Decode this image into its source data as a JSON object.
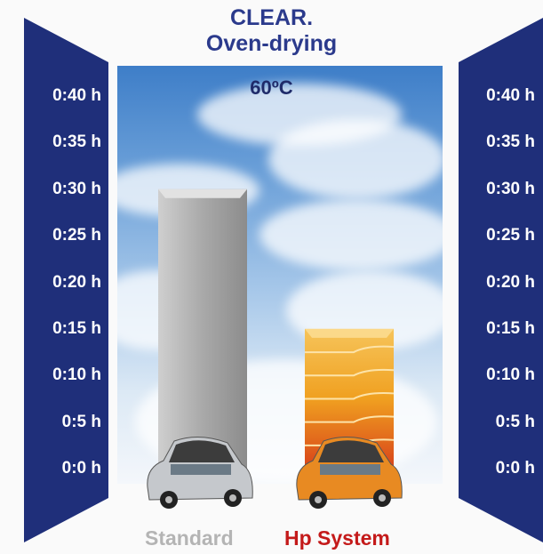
{
  "title": {
    "line1": "CLEAR.",
    "line2": "Oven-drying"
  },
  "condition": "60ºC",
  "axis": {
    "ticks": [
      "0:40 h",
      "0:35 h",
      "0:30 h",
      "0:25 h",
      "0:20 h",
      "0:15 h",
      "0:10 h",
      "0:5 h",
      "0:0 h"
    ]
  },
  "colors": {
    "panel": "#1f2f7a",
    "standard_bar": "#a9a9a9",
    "hp_bar": "#f0a020",
    "standard_label": "#b4b4b4",
    "hp_label": "#c41a1a",
    "title": "#2b3a8c"
  },
  "icons": [
    "car-icon"
  ],
  "chart_data": {
    "type": "bar",
    "title": "CLEAR. Oven-drying",
    "subtitle": "60ºC",
    "categories": [
      "Standard",
      "Hp System"
    ],
    "values": [
      30,
      15
    ],
    "units": "minutes",
    "ylim": [
      0,
      40
    ],
    "tick_step": 5,
    "grid": false,
    "legend": "none"
  }
}
